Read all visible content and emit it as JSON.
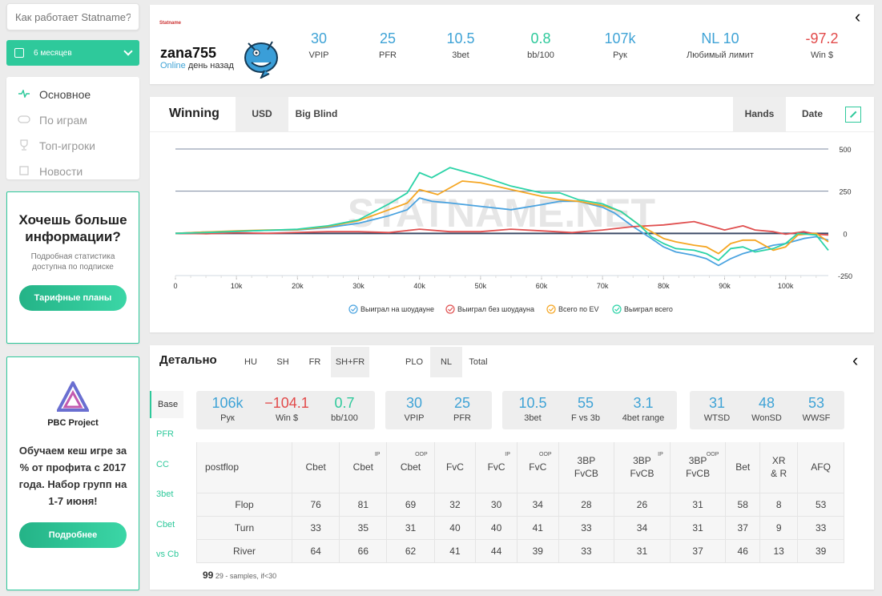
{
  "sidebar": {
    "search_placeholder": "Как работает Statname?",
    "period": "6 месяцев",
    "nav": [
      {
        "label": "Основное",
        "icon": "pulse-icon",
        "active": true
      },
      {
        "label": "По играм",
        "icon": "gamepad-icon"
      },
      {
        "label": "Топ-игроки",
        "icon": "trophy-icon"
      },
      {
        "label": "Новости",
        "icon": "news-icon"
      }
    ],
    "promo": {
      "title": "Хочешь больше информации?",
      "text": "Подробная статистика доступна по подписке",
      "button": "Тарифные планы"
    },
    "pbc": {
      "name": "PBC Project",
      "text": "Обучаем кеш игре за % от профита с 2017 года. Набор групп на 1-7 июня!",
      "button": "Подробнее"
    }
  },
  "header": {
    "logo_text": "Statname",
    "player": "zana755",
    "status_online": "Online",
    "status_rest": " день назад",
    "stats": [
      {
        "value": "30",
        "label": "VPIP",
        "color": "#3fa3d6"
      },
      {
        "value": "25",
        "label": "PFR",
        "color": "#3fa3d6"
      },
      {
        "value": "10.5",
        "label": "3bet",
        "color": "#3fa3d6"
      },
      {
        "value": "0.8",
        "label": "bb/100",
        "color": "#2ec99b"
      },
      {
        "value": "107k",
        "label": "Рук",
        "color": "#3fa3d6"
      },
      {
        "value": "NL 10",
        "label": "Любимый лимит",
        "color": "#3fa3d6"
      },
      {
        "value": "-97.2",
        "label": "Win $",
        "color": "#e24a4a"
      }
    ]
  },
  "chart_panel": {
    "title": "Winning",
    "tabs": [
      "USD",
      "Big Blind"
    ],
    "axis_tabs": [
      "Hands",
      "Date"
    ],
    "watermark": "STATNAME.NET"
  },
  "chart_data": {
    "type": "line",
    "x_ticks": [
      "0",
      "10k",
      "20k",
      "30k",
      "40k",
      "50k",
      "60k",
      "70k",
      "80k",
      "90k",
      "100k"
    ],
    "y_ticks": [
      "500",
      "250",
      "0",
      "-250"
    ],
    "xlim": [
      0,
      107000
    ],
    "ylim": [
      -250,
      500
    ],
    "series": [
      {
        "name": "Выиграл на шоудауне",
        "color": "#4aa3e0",
        "x": [
          0,
          5000,
          10000,
          15000,
          20000,
          25000,
          30000,
          35000,
          38000,
          40000,
          42000,
          45000,
          50000,
          55000,
          60000,
          63000,
          66000,
          70000,
          72000,
          75000,
          78000,
          80000,
          82000,
          85000,
          87000,
          89000,
          91000,
          93000,
          95000,
          98000,
          100000,
          103000,
          105000,
          107000
        ],
        "y": [
          0,
          8,
          12,
          18,
          20,
          35,
          60,
          105,
          140,
          210,
          190,
          180,
          160,
          140,
          170,
          190,
          190,
          155,
          120,
          40,
          -30,
          -80,
          -110,
          -130,
          -150,
          -190,
          -150,
          -120,
          -100,
          -70,
          -60,
          -30,
          -20,
          -40
        ]
      },
      {
        "name": "Выиграл без шоудауна",
        "color": "#e05050",
        "x": [
          0,
          5000,
          10000,
          15000,
          20000,
          25000,
          30000,
          35000,
          40000,
          45000,
          50000,
          55000,
          60000,
          65000,
          70000,
          75000,
          80000,
          85000,
          88000,
          90000,
          93000,
          95000,
          98000,
          100000,
          103000,
          105000,
          107000
        ],
        "y": [
          0,
          -2,
          4,
          0,
          6,
          10,
          10,
          5,
          25,
          10,
          10,
          25,
          15,
          5,
          20,
          40,
          50,
          70,
          40,
          20,
          45,
          20,
          10,
          -5,
          10,
          -5,
          -10
        ]
      },
      {
        "name": "Всего по EV",
        "color": "#f5a623",
        "x": [
          0,
          5000,
          10000,
          15000,
          20000,
          25000,
          30000,
          35000,
          38000,
          40000,
          43000,
          47000,
          50000,
          55000,
          60000,
          63000,
          66000,
          70000,
          73000,
          76000,
          78000,
          80000,
          82000,
          85000,
          87000,
          89000,
          91000,
          93000,
          95000,
          98000,
          100000,
          102000,
          105000,
          107000
        ],
        "y": [
          0,
          8,
          15,
          20,
          22,
          40,
          75,
          140,
          180,
          260,
          230,
          310,
          300,
          260,
          220,
          200,
          190,
          165,
          130,
          50,
          10,
          -30,
          -50,
          -70,
          -80,
          -120,
          -60,
          -40,
          -40,
          -100,
          -80,
          -10,
          0,
          -50
        ]
      },
      {
        "name": "Выиграл всего",
        "color": "#2bd3a7",
        "x": [
          0,
          5000,
          10000,
          15000,
          20000,
          25000,
          30000,
          35000,
          38000,
          40000,
          42000,
          45000,
          50000,
          55000,
          60000,
          63000,
          66000,
          70000,
          73000,
          76000,
          78000,
          80000,
          82000,
          85000,
          87000,
          89000,
          91000,
          93000,
          95000,
          98000,
          100000,
          102000,
          105000,
          107000
        ],
        "y": [
          0,
          5,
          12,
          18,
          25,
          45,
          80,
          175,
          240,
          360,
          330,
          390,
          340,
          280,
          240,
          240,
          200,
          175,
          130,
          50,
          -20,
          -60,
          -90,
          -100,
          -120,
          -160,
          -90,
          -80,
          -110,
          -90,
          -60,
          0,
          -10,
          -100
        ]
      }
    ]
  },
  "detail": {
    "title": "Детально",
    "tabs": [
      "HU",
      "SH",
      "FR",
      "SH+FR",
      "PLO",
      "NL",
      "Total"
    ],
    "side_tabs": [
      "Base",
      "PFR",
      "CC",
      "3bet",
      "Cbet",
      "vs Cb"
    ],
    "groups": [
      [
        {
          "value": "106k",
          "label": "Рук",
          "color": "#3fa3d6"
        },
        {
          "value": "−104.1",
          "label": "Win $",
          "color": "#e24a4a"
        },
        {
          "value": "0.7",
          "label": "bb/100",
          "color": "#2ec99b"
        }
      ],
      [
        {
          "value": "30",
          "label": "VPIP",
          "color": "#3fa3d6"
        },
        {
          "value": "25",
          "label": "PFR",
          "color": "#3fa3d6"
        }
      ],
      [
        {
          "value": "10.5",
          "label": "3bet",
          "color": "#3fa3d6"
        },
        {
          "value": "55",
          "label": "F vs 3b",
          "color": "#3fa3d6"
        },
        {
          "value": "3.1",
          "label": "4bet range",
          "color": "#3fa3d6"
        }
      ],
      [
        {
          "value": "31",
          "label": "WTSD",
          "color": "#3fa3d6"
        },
        {
          "value": "48",
          "label": "WonSD",
          "color": "#3fa3d6"
        },
        {
          "value": "53",
          "label": "WWSF",
          "color": "#3fa3d6"
        }
      ]
    ],
    "table": {
      "headers": [
        {
          "label": "postflop"
        },
        {
          "label": "Cbet"
        },
        {
          "label": "Cbet",
          "sup": "IP"
        },
        {
          "label": "Cbet",
          "sup": "OOP"
        },
        {
          "label": "FvC"
        },
        {
          "label": "FvC",
          "sup": "IP"
        },
        {
          "label": "FvC",
          "sup": "OOP"
        },
        {
          "label": "3BP FvCB"
        },
        {
          "label": "3BP FvCB",
          "sup": "IP"
        },
        {
          "label": "3BP FvCB",
          "sup": "OOP"
        },
        {
          "label": "Bet"
        },
        {
          "label": "XR & R"
        },
        {
          "label": "AFQ"
        }
      ],
      "rows": [
        [
          "Flop",
          "76",
          "81",
          "69",
          "32",
          "30",
          "34",
          "28",
          "26",
          "31",
          "58",
          "8",
          "53"
        ],
        [
          "Turn",
          "33",
          "35",
          "31",
          "40",
          "40",
          "41",
          "33",
          "34",
          "31",
          "37",
          "9",
          "33"
        ],
        [
          "River",
          "64",
          "66",
          "62",
          "41",
          "44",
          "39",
          "33",
          "31",
          "37",
          "46",
          "13",
          "39"
        ]
      ]
    },
    "footnote_big": "99",
    "footnote_text": " 29 - samples, if<30"
  }
}
